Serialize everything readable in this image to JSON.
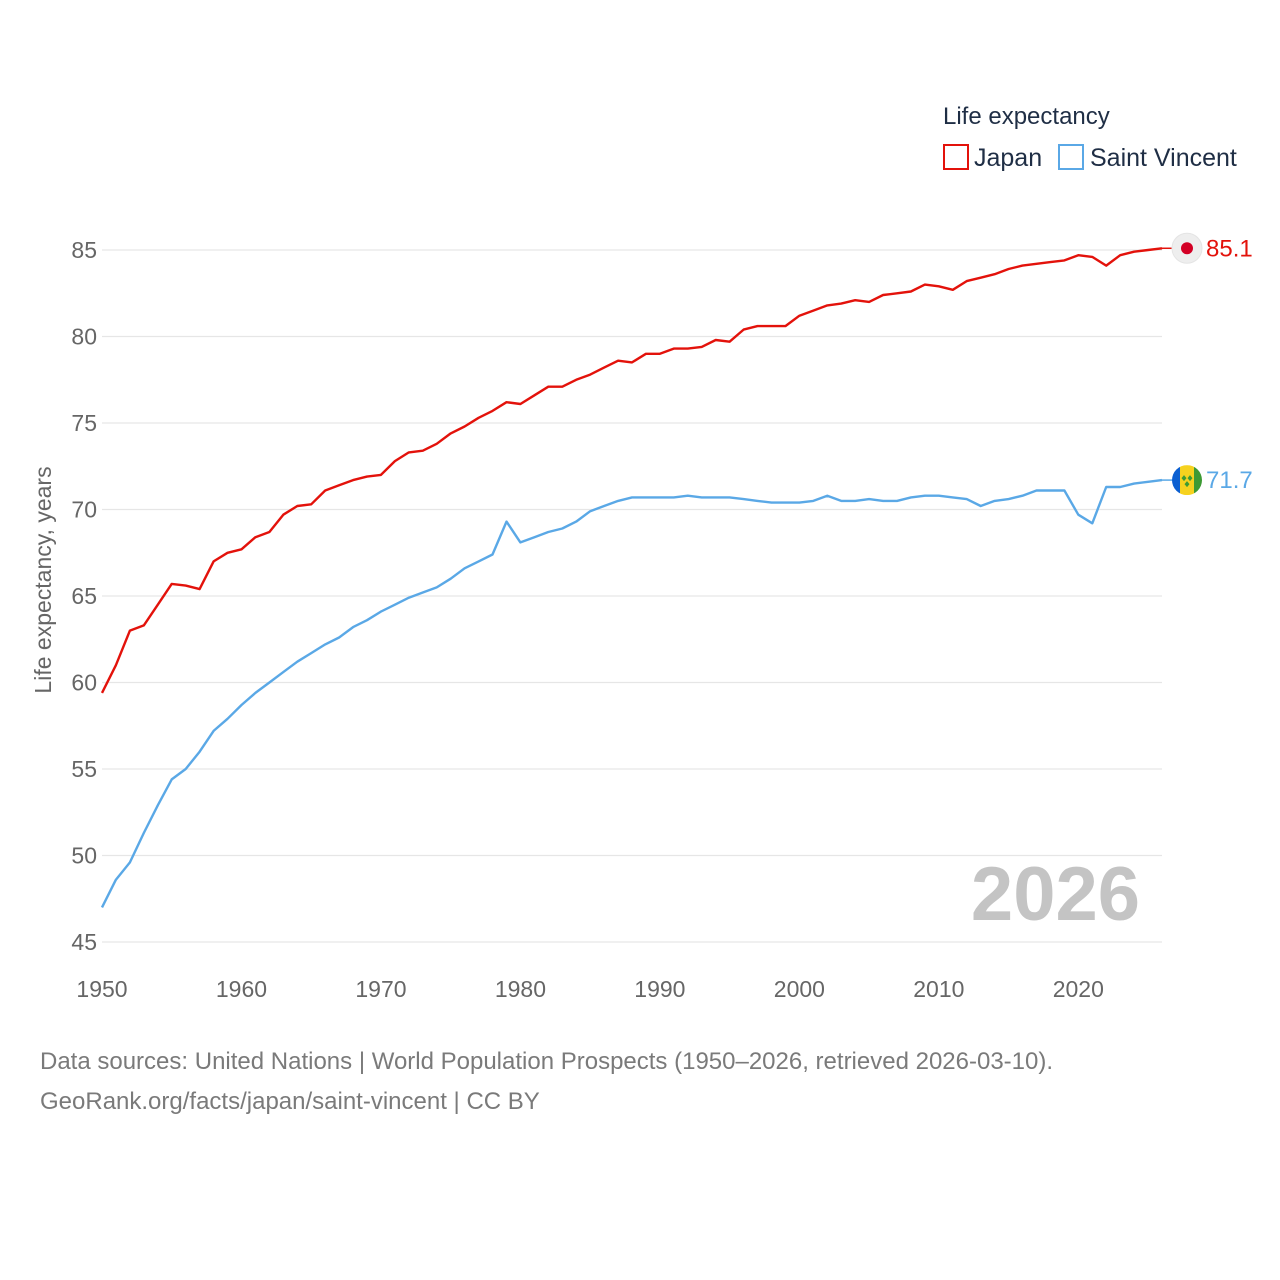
{
  "chart_data": {
    "type": "line",
    "legend_title": "Life expectancy",
    "ylabel": "Life expectancy, years",
    "xlabel": "",
    "xlim": [
      1950,
      2026
    ],
    "ylim": [
      45,
      85
    ],
    "x_ticks": [
      1950,
      1960,
      1970,
      1980,
      1990,
      2000,
      2010,
      2020
    ],
    "y_ticks": [
      45,
      50,
      55,
      60,
      65,
      70,
      75,
      80,
      85
    ],
    "year_label": "2026",
    "legend_placement": "top-right",
    "x": [
      1950,
      1951,
      1952,
      1953,
      1954,
      1955,
      1956,
      1957,
      1958,
      1959,
      1960,
      1961,
      1962,
      1963,
      1964,
      1965,
      1966,
      1967,
      1968,
      1969,
      1970,
      1971,
      1972,
      1973,
      1974,
      1975,
      1976,
      1977,
      1978,
      1979,
      1980,
      1981,
      1982,
      1983,
      1984,
      1985,
      1986,
      1987,
      1988,
      1989,
      1990,
      1991,
      1992,
      1993,
      1994,
      1995,
      1996,
      1997,
      1998,
      1999,
      2000,
      2001,
      2002,
      2003,
      2004,
      2005,
      2006,
      2007,
      2008,
      2009,
      2010,
      2011,
      2012,
      2013,
      2014,
      2015,
      2016,
      2017,
      2018,
      2019,
      2020,
      2021,
      2022,
      2023,
      2024,
      2025,
      2026
    ],
    "series": [
      {
        "name": "Japan",
        "color": "#e3120b",
        "end_label": "85.1",
        "flag_icon": "japan-flag-icon",
        "values": [
          59.4,
          61.0,
          63.0,
          63.3,
          64.5,
          65.7,
          65.6,
          65.4,
          67.0,
          67.5,
          67.7,
          68.4,
          68.7,
          69.7,
          70.2,
          70.3,
          71.1,
          71.4,
          71.7,
          71.9,
          72.0,
          72.8,
          73.3,
          73.4,
          73.8,
          74.4,
          74.8,
          75.3,
          75.7,
          76.2,
          76.1,
          76.6,
          77.1,
          77.1,
          77.5,
          77.8,
          78.2,
          78.6,
          78.5,
          79.0,
          79.0,
          79.3,
          79.3,
          79.4,
          79.8,
          79.7,
          80.4,
          80.6,
          80.6,
          80.6,
          81.2,
          81.5,
          81.8,
          81.9,
          82.1,
          82.0,
          82.4,
          82.5,
          82.6,
          83.0,
          82.9,
          82.7,
          83.2,
          83.4,
          83.6,
          83.9,
          84.1,
          84.2,
          84.3,
          84.4,
          84.7,
          84.6,
          84.1,
          84.7,
          84.9,
          85.0,
          85.1
        ]
      },
      {
        "name": "Saint Vincent",
        "color": "#5aa8e6",
        "end_label": "71.7",
        "flag_icon": "saint-vincent-flag-icon",
        "values": [
          47.0,
          48.6,
          49.6,
          51.3,
          52.9,
          54.4,
          55.0,
          56.0,
          57.2,
          57.9,
          58.7,
          59.4,
          60.0,
          60.6,
          61.2,
          61.7,
          62.2,
          62.6,
          63.2,
          63.6,
          64.1,
          64.5,
          64.9,
          65.2,
          65.5,
          66.0,
          66.6,
          67.0,
          67.4,
          69.3,
          68.1,
          68.4,
          68.7,
          68.9,
          69.3,
          69.9,
          70.2,
          70.5,
          70.7,
          70.7,
          70.7,
          70.7,
          70.8,
          70.7,
          70.7,
          70.7,
          70.6,
          70.5,
          70.4,
          70.4,
          70.4,
          70.5,
          70.8,
          70.5,
          70.5,
          70.6,
          70.5,
          70.5,
          70.7,
          70.8,
          70.8,
          70.7,
          70.6,
          70.2,
          70.5,
          70.6,
          70.8,
          71.1,
          71.1,
          71.1,
          69.7,
          69.2,
          71.3,
          71.3,
          71.5,
          71.6,
          71.7
        ]
      }
    ]
  },
  "source": {
    "line1": "Data sources: United Nations | World Population Prospects (1950–2026, retrieved 2026-03-10).",
    "line2": "GeoRank.org/facts/japan/saint-vincent | CC BY"
  }
}
